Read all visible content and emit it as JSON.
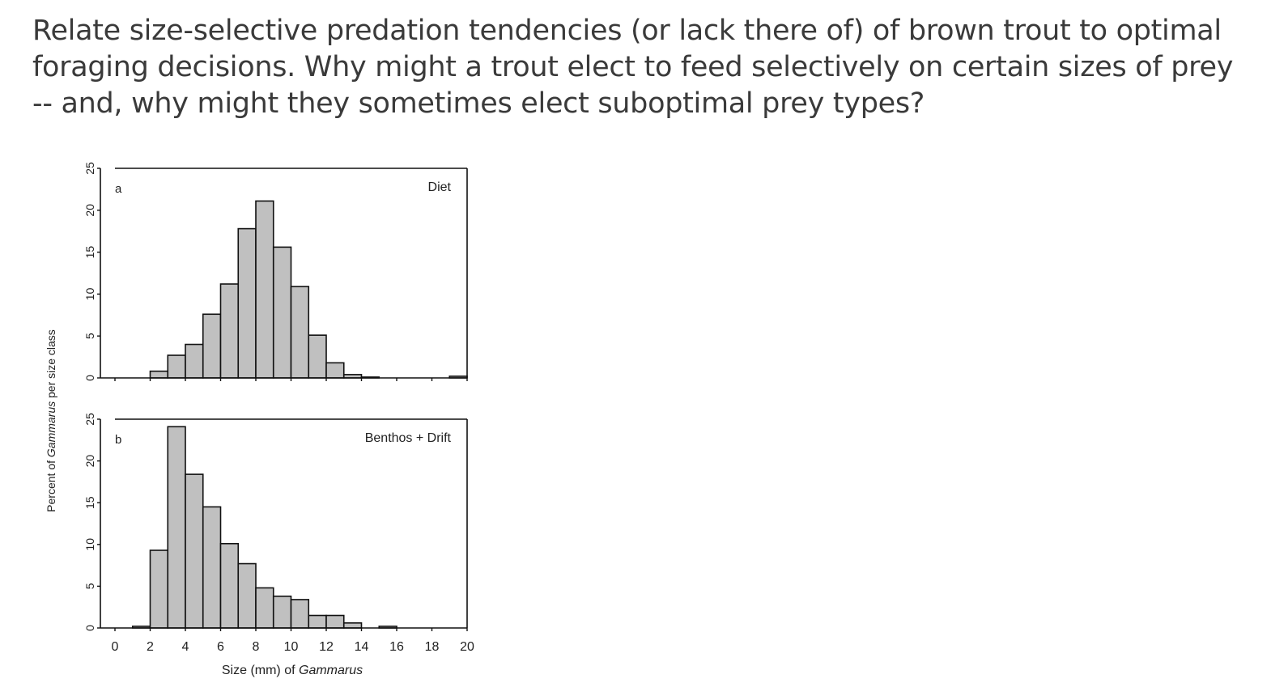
{
  "question": {
    "text": "Relate size-selective predation tendencies (or lack there of) of brown trout to optimal foraging decisions. Why might a trout elect to feed selectively on certain sizes of prey -- and, why might they sometimes elect suboptimal prey types?"
  },
  "chart_data": [
    {
      "type": "bar",
      "panel_letter": "a",
      "panel_title": "Diet",
      "bin_width": 1,
      "bin_starts": [
        0,
        1,
        2,
        3,
        4,
        5,
        6,
        7,
        8,
        9,
        10,
        11,
        12,
        13,
        14,
        15,
        16,
        17,
        18,
        19
      ],
      "values": [
        0,
        0,
        0.8,
        2.7,
        4.0,
        7.6,
        11.2,
        17.8,
        21.1,
        15.6,
        10.9,
        5.1,
        1.8,
        0.4,
        0.1,
        0,
        0,
        0,
        0,
        0.2
      ],
      "ylim": [
        0,
        25
      ],
      "yticks": [
        "0",
        "5",
        "10",
        "15",
        "20",
        "25"
      ],
      "xlim": [
        0,
        20
      ]
    },
    {
      "type": "bar",
      "panel_letter": "b",
      "panel_title": "Benthos + Drift",
      "bin_width": 1,
      "bin_starts": [
        0,
        1,
        2,
        3,
        4,
        5,
        6,
        7,
        8,
        9,
        10,
        11,
        12,
        13,
        14,
        15,
        16,
        17,
        18,
        19
      ],
      "values": [
        0,
        0.2,
        9.3,
        24.1,
        18.4,
        14.5,
        10.1,
        7.7,
        4.8,
        3.8,
        3.4,
        1.5,
        1.5,
        0.6,
        0,
        0.2,
        0,
        0,
        0,
        0
      ],
      "ylim": [
        0,
        25
      ],
      "yticks": [
        "0",
        "5",
        "10",
        "15",
        "20",
        "25"
      ],
      "xlim": [
        0,
        20
      ],
      "xticks": [
        "0",
        "2",
        "4",
        "6",
        "8",
        "10",
        "12",
        "14",
        "16",
        "18",
        "20"
      ]
    }
  ],
  "axes": {
    "ylabel_prefix": "Percent of ",
    "ylabel_italic": "Gammarus",
    "ylabel_suffix": " per size class",
    "xlabel_prefix": "Size (mm) of ",
    "xlabel_italic": "Gammarus"
  },
  "colors": {
    "bar_fill": "#c0c0c0",
    "bar_stroke": "#111111",
    "frame": "#111111",
    "question_text": "#3a3a3a"
  }
}
